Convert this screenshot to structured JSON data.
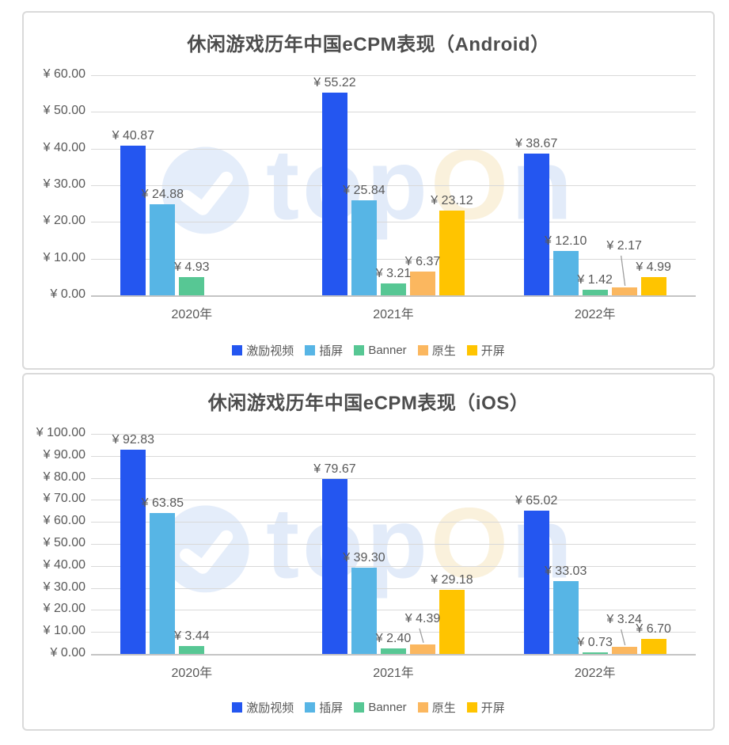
{
  "watermark": {
    "part1": "top",
    "part2": "O",
    "part3": "n"
  },
  "colors": {
    "grid": "#D9D9D9",
    "axis_line": "#C4C4C4",
    "text": "#595959",
    "title_text": "#4D4D4D",
    "watermark_blue": "#E2EBF9",
    "watermark_cream": "#FAF1DC"
  },
  "chart_data": [
    {
      "type": "bar",
      "title": "休闲游戏历年中国eCPM表现（Android）",
      "categories": [
        "2020年",
        "2021年",
        "2022年"
      ],
      "series": [
        {
          "name": "激励视频",
          "color": "#2456F0",
          "values": [
            40.87,
            55.22,
            38.67
          ]
        },
        {
          "name": "插屏",
          "color": "#57B5E5",
          "values": [
            24.88,
            25.84,
            12.1
          ]
        },
        {
          "name": "Banner",
          "color": "#57C794",
          "values": [
            4.93,
            3.21,
            1.42
          ]
        },
        {
          "name": "原生",
          "color": "#FBB75F",
          "values": [
            null,
            6.37,
            2.17
          ]
        },
        {
          "name": "开屏",
          "color": "#FFC400",
          "values": [
            null,
            23.12,
            4.99
          ]
        }
      ],
      "ylim": [
        0,
        60
      ],
      "ytick_step": 10,
      "value_prefix": "¥ ",
      "grid": true,
      "legend_position": "bottom",
      "callouts": [
        {
          "series_index": 3,
          "category_index": 2,
          "raise": 40,
          "leader": true
        }
      ]
    },
    {
      "type": "bar",
      "title": "休闲游戏历年中国eCPM表现（iOS）",
      "categories": [
        "2020年",
        "2021年",
        "2022年"
      ],
      "series": [
        {
          "name": "激励视频",
          "color": "#2456F0",
          "values": [
            92.83,
            79.67,
            65.02
          ]
        },
        {
          "name": "插屏",
          "color": "#57B5E5",
          "values": [
            63.85,
            39.3,
            33.03
          ]
        },
        {
          "name": "Banner",
          "color": "#57C794",
          "values": [
            3.44,
            2.4,
            0.73
          ]
        },
        {
          "name": "原生",
          "color": "#FBB75F",
          "values": [
            null,
            4.39,
            3.24
          ]
        },
        {
          "name": "开屏",
          "color": "#FFC400",
          "values": [
            null,
            29.18,
            6.7
          ]
        }
      ],
      "ylim": [
        0,
        100
      ],
      "ytick_step": 10,
      "value_prefix": "¥ ",
      "grid": true,
      "legend_position": "bottom",
      "callouts": [
        {
          "series_index": 3,
          "category_index": 1,
          "raise": 20,
          "leader": true
        },
        {
          "series_index": 3,
          "category_index": 2,
          "raise": 22,
          "leader": true
        }
      ]
    }
  ]
}
